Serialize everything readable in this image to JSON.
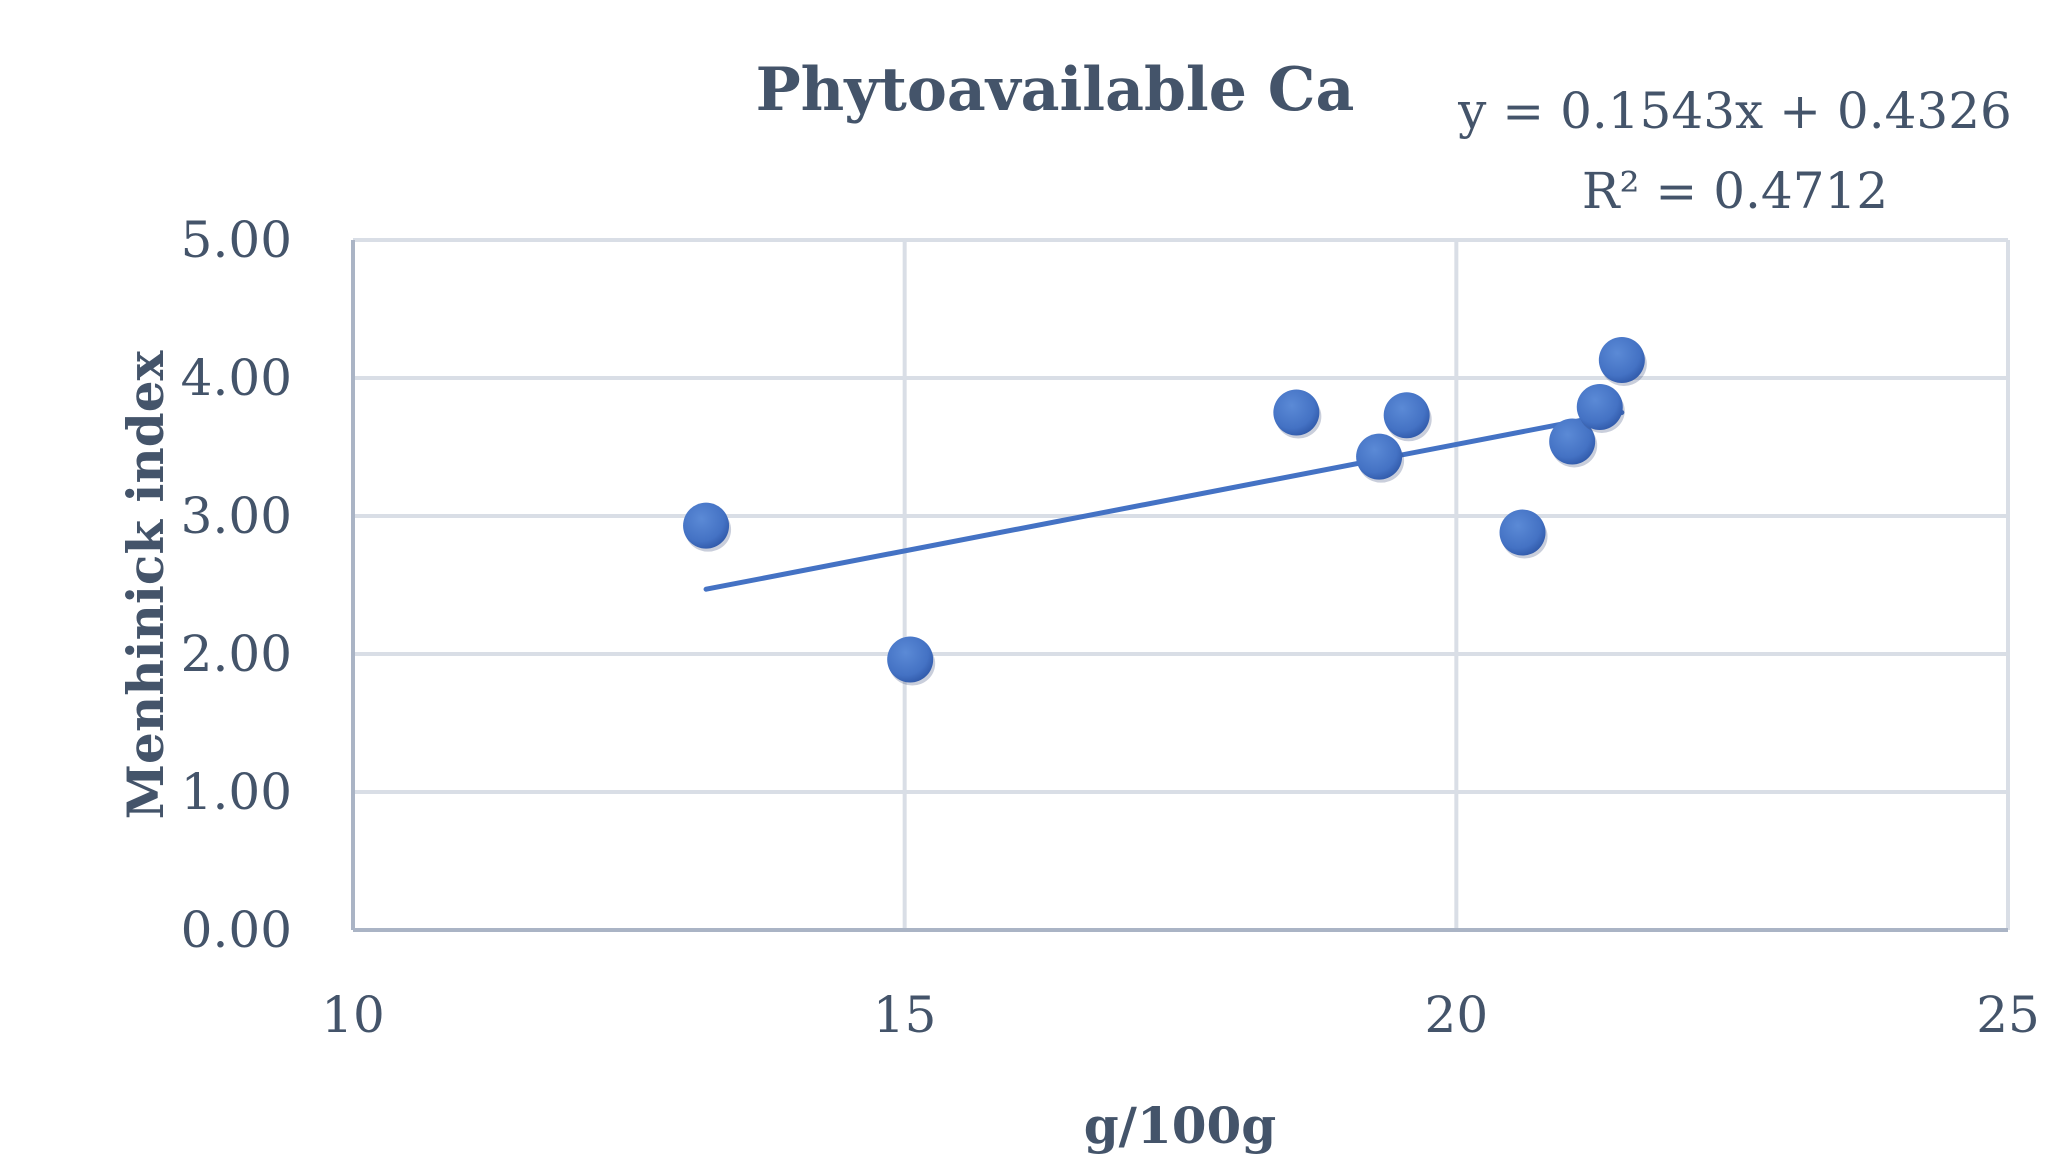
{
  "chart_data": {
    "type": "scatter",
    "title": "Phytoavailable Ca",
    "xlabel": "g/100g",
    "ylabel": "Menhinick index",
    "xlim": [
      10,
      25
    ],
    "ylim": [
      0,
      5
    ],
    "x_ticks": [
      10,
      15,
      20,
      25
    ],
    "y_ticks": [
      0,
      1,
      2,
      3,
      4,
      5
    ],
    "x_tick_labels": [
      "10",
      "15",
      "20",
      "25"
    ],
    "y_tick_labels": [
      "0.00",
      "1.00",
      "2.00",
      "3.00",
      "4.00",
      "5.00"
    ],
    "grid": true,
    "legend": "none",
    "series": [
      {
        "marker_color": "#4472c4",
        "x": [
          13.2,
          15.05,
          18.55,
          19.3,
          19.55,
          20.6,
          21.05,
          21.3,
          21.5
        ],
        "y": [
          2.93,
          1.96,
          3.75,
          3.43,
          3.73,
          2.88,
          3.54,
          3.79,
          4.13
        ]
      }
    ],
    "trendline": {
      "type": "linear",
      "slope": 0.1543,
      "intercept": 0.4326,
      "x_range": [
        13.2,
        21.5
      ],
      "color": "#4472c4",
      "equation_label": "y = 0.1543x + 0.4326",
      "r2_label": "R² = 0.4712"
    },
    "colors": {
      "text": "#44546a",
      "grid": "#d9dee6",
      "axis": "#aab4c5"
    }
  }
}
